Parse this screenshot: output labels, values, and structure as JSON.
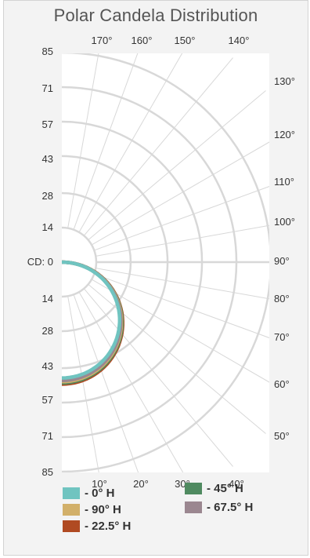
{
  "chart_data": {
    "type": "polar",
    "title": "Polar Candela Distribution",
    "radial_unit_label": "CD: 0",
    "radial_ticks": [
      0,
      14,
      28,
      43,
      57,
      71,
      85
    ],
    "left_tick_labels_top": [
      "85",
      "71",
      "57",
      "43",
      "28",
      "14"
    ],
    "left_tick_labels_bottom": [
      "14",
      "28",
      "43",
      "57",
      "71",
      "85"
    ],
    "top_angle_labels": [
      "170°",
      "160°",
      "150°",
      "140°"
    ],
    "right_angle_labels": [
      "130°",
      "120°",
      "110°",
      "100°",
      "90°",
      "80°",
      "70°",
      "60°",
      "50°"
    ],
    "bottom_angle_labels": [
      "10°",
      "20°",
      "30°",
      "40°"
    ],
    "rmax": 85,
    "series": [
      {
        "name": "- 22.5° H",
        "color": "#b04a22",
        "peak_cd": 49.5
      },
      {
        "name": "- 45° H",
        "color": "#4f8a60",
        "peak_cd": 49.0
      },
      {
        "name": "- 90° H",
        "color": "#d2b06a",
        "peak_cd": 48.5
      },
      {
        "name": "- 67.5° H",
        "color": "#9b8790",
        "peak_cd": 48.0
      },
      {
        "name": "- 0° H",
        "color": "#70c4c0",
        "peak_cd": 47.0
      }
    ],
    "distribution": "cosine (Lambertian), 0° at bottom (nadir), 90° at horizontal"
  },
  "legend": {
    "items": [
      {
        "label": "- 0° H",
        "color": "#70c4c0"
      },
      {
        "label": "- 45° H",
        "color": "#4f8a60"
      },
      {
        "label": "- 90° H",
        "color": "#d2b06a"
      },
      {
        "label": "- 67.5° H",
        "color": "#9b8790"
      },
      {
        "label": "- 22.5° H",
        "color": "#b04a22"
      }
    ]
  },
  "colors": {
    "grid": "#d8d8d8",
    "panel": "#ffffff",
    "background": "#f3f3f3"
  }
}
